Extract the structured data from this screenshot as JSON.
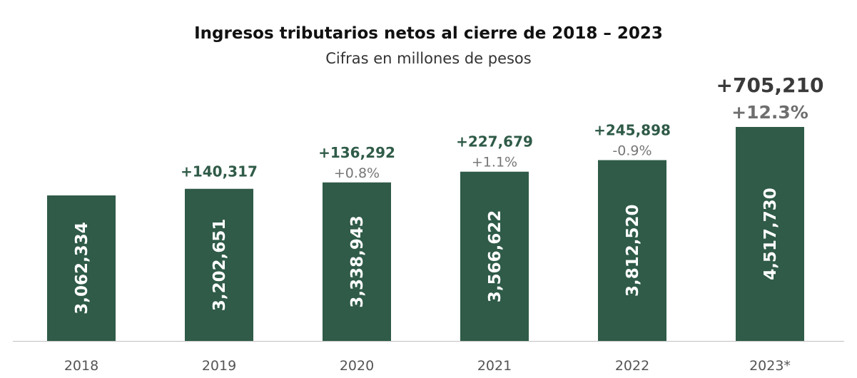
{
  "chart_data": {
    "type": "bar",
    "title": "Ingresos tributarios netos al cierre de 2018 – 2023",
    "subtitle": "Cifras en millones de pesos",
    "categories": [
      "2018",
      "2019",
      "2020",
      "2021",
      "2022",
      "2023*"
    ],
    "values": [
      3062334,
      3202651,
      3338943,
      3566622,
      3812520,
      4517730
    ],
    "value_labels": [
      "3,062,334",
      "3,202,651",
      "3,338,943",
      "3,566,622",
      "3,812,520",
      "4,517,730"
    ],
    "change_labels": [
      "",
      "+140,317",
      "+136,292",
      "+227,679",
      "+245,898",
      "+705,210"
    ],
    "pct_labels": [
      "",
      "",
      "+0.8%",
      "+1.1%",
      "-0.9%",
      "+12.3%"
    ],
    "xlabel": "",
    "ylabel": "",
    "grid": false,
    "colors": {
      "bar": "#2f5b48",
      "change_text": "#2f5b48",
      "pct_text": "#777777",
      "highlight_text": "#3a3a3a",
      "bar_label": "#ffffff",
      "axis": "#bfbfbf"
    }
  }
}
